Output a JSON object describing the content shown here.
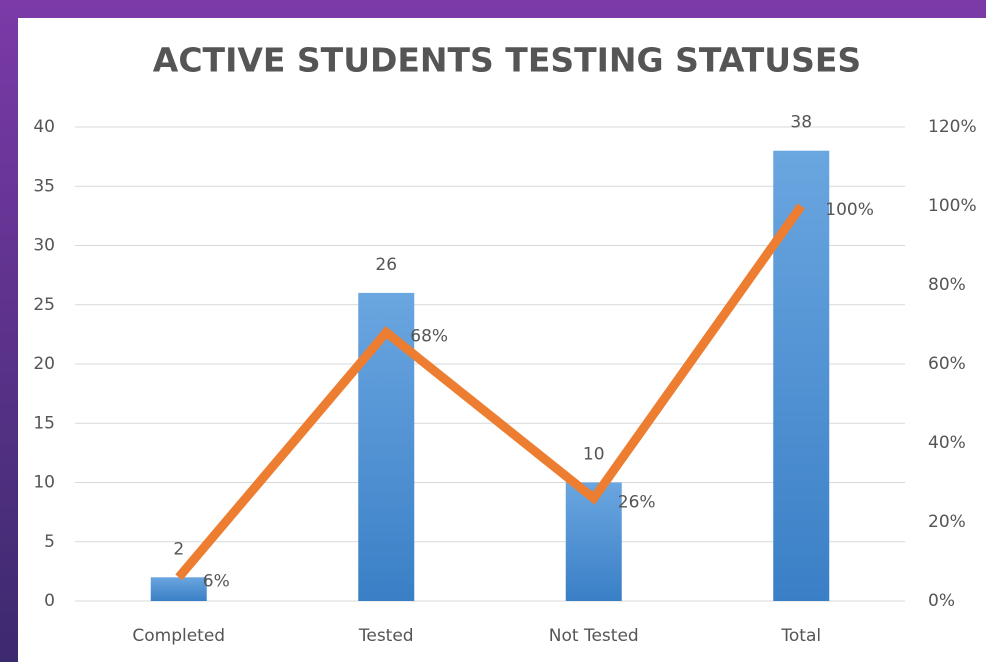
{
  "chart_data": {
    "type": "bar",
    "title": "ACTIVE STUDENTS TESTING STATUSES",
    "categories": [
      "Completed",
      "Tested",
      "Not Tested",
      "Total"
    ],
    "series": [
      {
        "type": "bar",
        "color": "#4a8fd6",
        "values": [
          2,
          26,
          10,
          38
        ]
      },
      {
        "type": "line",
        "axis": "y2",
        "color": "#ed7d31",
        "values": [
          6,
          68,
          26,
          100
        ],
        "value_labels": [
          "6%",
          "68%",
          "26%",
          "100%"
        ]
      }
    ],
    "ylim": [
      0,
      40
    ],
    "yticks": [
      0,
      5,
      10,
      15,
      20,
      25,
      30,
      35,
      40
    ],
    "y2lim": [
      0,
      120
    ],
    "y2ticks": [
      {
        "value": 0,
        "label": "0%"
      },
      {
        "value": 20,
        "label": "20%"
      },
      {
        "value": 40,
        "label": "40%"
      },
      {
        "value": 60,
        "label": "60%"
      },
      {
        "value": 80,
        "label": "80%"
      },
      {
        "value": 100,
        "label": "100%"
      },
      {
        "value": 120,
        "label": "120%"
      }
    ],
    "grid": true
  }
}
